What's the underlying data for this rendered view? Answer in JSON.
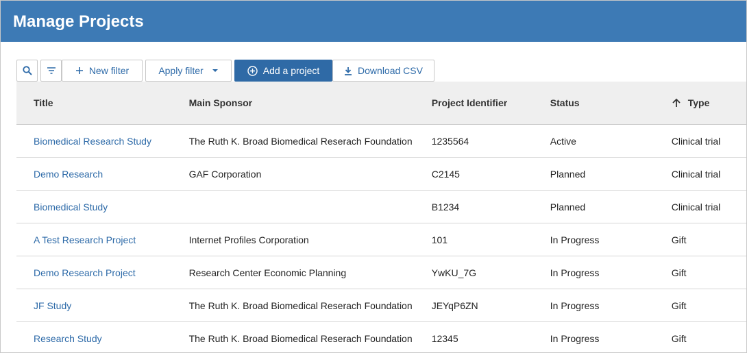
{
  "header": {
    "title": "Manage Projects"
  },
  "toolbar": {
    "new_filter": "New filter",
    "apply_filter": "Apply filter",
    "add_project": "Add a project",
    "download_csv": "Download CSV"
  },
  "table": {
    "columns": [
      "Title",
      "Main Sponsor",
      "Project Identifier",
      "Status",
      "Type"
    ],
    "rows": [
      [
        "Biomedical Research Study",
        "The Ruth K. Broad Biomedical Reserach Foundation",
        "1235564",
        "Active",
        "Clinical trial"
      ],
      [
        "Demo Research",
        "GAF Corporation",
        "C2145",
        "Planned",
        "Clinical trial"
      ],
      [
        "Biomedical Study",
        null,
        "B1234",
        "Planned",
        "Clinical trial"
      ],
      [
        "A Test Research Project",
        "Internet Profiles Corporation",
        "101",
        "In Progress",
        "Gift"
      ],
      [
        "Demo Research Project",
        "Research Center Economic Planning",
        "YwKU_7G",
        "In Progress",
        "Gift"
      ],
      [
        "JF Study",
        "The Ruth K. Broad Biomedical Reserach Foundation",
        "JEYqP6ZN",
        "In Progress",
        "Gift"
      ],
      [
        "Research Study",
        "The Ruth K. Broad Biomedical Reserach Foundation",
        "12345",
        "In Progress",
        "Gift"
      ]
    ]
  }
}
